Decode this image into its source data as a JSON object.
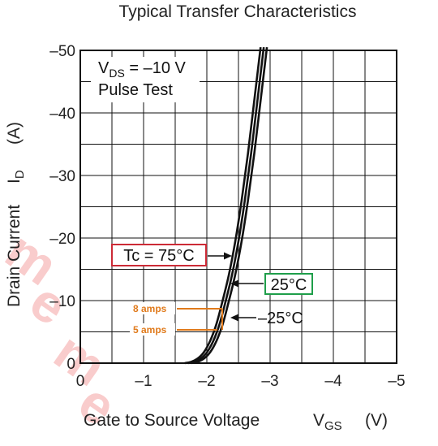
{
  "chart_data": {
    "type": "line",
    "title": "Typical Transfer Characteristics",
    "xlabel": "Gate to Source Voltage",
    "xlabel_symbol": "V",
    "xlabel_sub": "GS",
    "xlabel_unit": "(V)",
    "ylabel": "Drain Current",
    "ylabel_symbol": "I",
    "ylabel_sub": "D",
    "ylabel_unit": "(A)",
    "xlim": [
      0,
      -5
    ],
    "ylim": [
      0,
      -50
    ],
    "x_ticks": [
      0,
      -1,
      -2,
      -3,
      -4,
      -5
    ],
    "x_tick_labels": [
      "0",
      "–1",
      "–2",
      "–3",
      "–4",
      "–5"
    ],
    "y_ticks": [
      0,
      -10,
      -20,
      -30,
      -40,
      -50
    ],
    "y_tick_labels": [
      "0",
      "–10",
      "–20",
      "–30",
      "–40",
      "–50"
    ],
    "grid": true,
    "conditions": {
      "vds_symbol": "V",
      "vds_sub": "DS",
      "vds_value": " = –10 V",
      "test": "Pulse Test"
    },
    "series": [
      {
        "name": "Tc = 75°C",
        "color": "#111111",
        "x": [
          -1.65,
          -1.75,
          -1.85,
          -1.95,
          -2.05,
          -2.15,
          -2.25,
          -2.35,
          -2.45,
          -2.55,
          -2.65,
          -2.75,
          -2.85
        ],
        "y": [
          0,
          -0.2,
          -0.7,
          -1.7,
          -3.5,
          -6.2,
          -10,
          -14.2,
          -19.5,
          -26,
          -33.5,
          -42,
          -51
        ]
      },
      {
        "name": "25°C",
        "color": "#111111",
        "x": [
          -1.7,
          -1.8,
          -1.9,
          -2.0,
          -2.1,
          -2.2,
          -2.3,
          -2.4,
          -2.5,
          -2.6,
          -2.7,
          -2.8,
          -2.9
        ],
        "y": [
          0,
          -0.2,
          -0.7,
          -1.7,
          -3.5,
          -6.2,
          -10,
          -14.2,
          -19.5,
          -26,
          -33.5,
          -42,
          -51
        ]
      },
      {
        "name": "–25°C",
        "color": "#111111",
        "x": [
          -1.75,
          -1.85,
          -1.95,
          -2.05,
          -2.15,
          -2.25,
          -2.35,
          -2.45,
          -2.55,
          -2.65,
          -2.75,
          -2.85,
          -2.95
        ],
        "y": [
          0,
          -0.2,
          -0.7,
          -1.7,
          -3.5,
          -6.2,
          -10,
          -14.2,
          -19.5,
          -26,
          -33.5,
          -42,
          -51
        ]
      }
    ],
    "annotations": [
      {
        "text": "Tc = 75°C",
        "box_color": "#cc2a36",
        "target_x": -2.44,
        "target_y": -17.4
      },
      {
        "text": "25°C",
        "box_color": "#1f9e4a",
        "target_x": -2.42,
        "target_y": -12.5
      },
      {
        "text": "–25°C",
        "box_color": "",
        "target_x": -2.42,
        "target_y": -7.0
      }
    ],
    "marker_labels": [
      {
        "text": "8 amps",
        "y": -8,
        "color": "#e07a1b"
      },
      {
        "text": "5 amps",
        "y": -5,
        "color": "#e07a1b"
      }
    ]
  }
}
